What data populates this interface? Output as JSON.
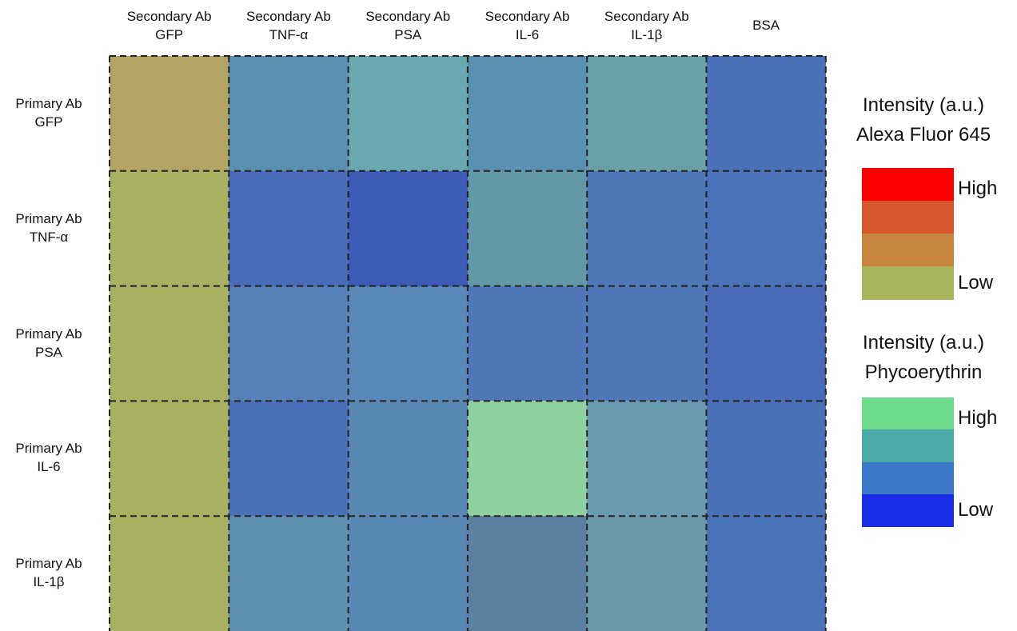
{
  "columns": [
    {
      "line1": "Secondary Ab",
      "line2": "GFP"
    },
    {
      "line1": "Secondary Ab",
      "line2": "TNF-α"
    },
    {
      "line1": "Secondary Ab",
      "line2": "PSA"
    },
    {
      "line1": "Secondary Ab",
      "line2": "IL-6"
    },
    {
      "line1": "Secondary Ab",
      "line2": "IL-1β"
    },
    {
      "line1": "BSA"
    }
  ],
  "rows": [
    {
      "line1": "Primary Ab",
      "line2": "GFP"
    },
    {
      "line1": "Primary Ab",
      "line2": "TNF-α"
    },
    {
      "line1": "Primary Ab",
      "line2": "PSA"
    },
    {
      "line1": "Primary Ab",
      "line2": "IL-6"
    },
    {
      "line1": "Primary Ab",
      "line2": "IL-1β"
    }
  ],
  "legends": [
    {
      "title": "Intensity (a.u.)",
      "subtitle": "Alexa Fluor 645",
      "high": "High",
      "low": "Low"
    },
    {
      "title": "Intensity (a.u.)",
      "subtitle": "Phycoerythrin",
      "high": "High",
      "low": "Low"
    }
  ]
}
